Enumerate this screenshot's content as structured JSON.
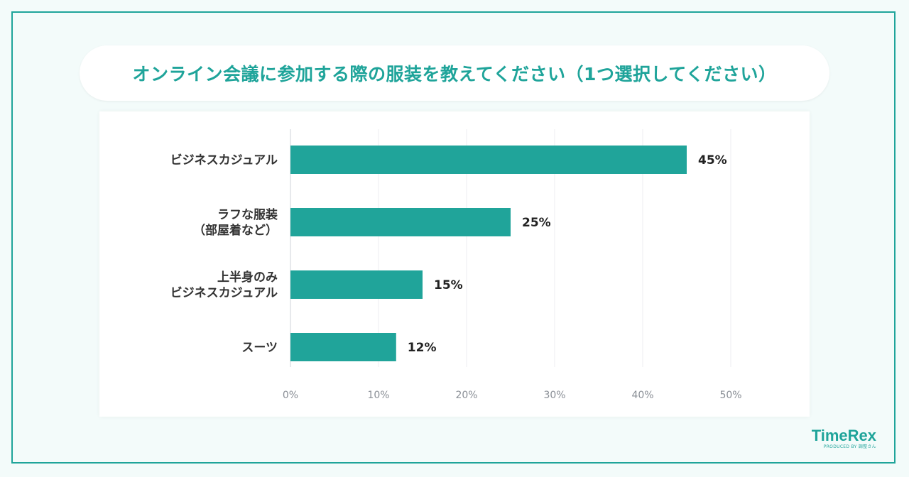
{
  "title": "オンライン会議に参加する際の服装を教えてください（1つ選択してください）",
  "logo": {
    "name": "TimeRex",
    "subtitle": "PRODUCED BY 調整さん"
  },
  "colors": {
    "accent": "#1fa49a",
    "bar": "#20a49a",
    "background": "#f3fbfa"
  },
  "chart_data": {
    "type": "bar",
    "orientation": "horizontal",
    "categories": [
      [
        "ビジネスカジュアル"
      ],
      [
        "ラフな服装",
        "（部屋着など）"
      ],
      [
        "上半身のみ",
        "ビジネスカジュアル"
      ],
      [
        "スーツ"
      ]
    ],
    "values": [
      45,
      25,
      15,
      12
    ],
    "value_labels": [
      "45%",
      "25%",
      "15%",
      "12%"
    ],
    "xlim": [
      0,
      50
    ],
    "xticks": [
      "0%",
      "10%",
      "20%",
      "30%",
      "40%",
      "50%"
    ],
    "grid": true,
    "legend": "none"
  }
}
